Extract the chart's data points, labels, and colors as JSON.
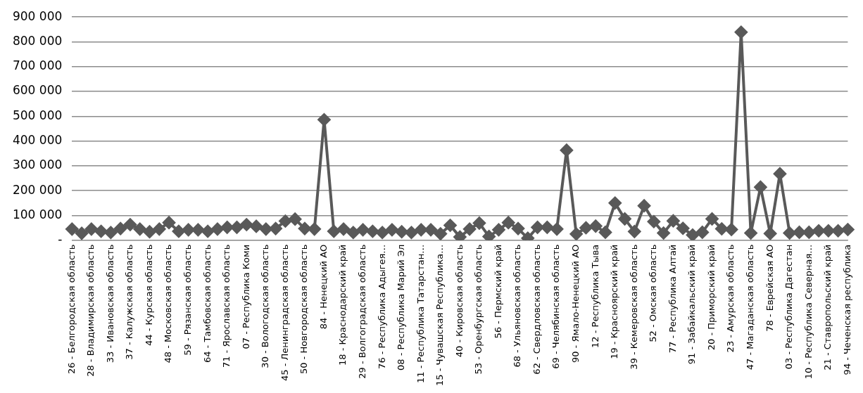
{
  "chart_data": {
    "type": "line",
    "categories": [
      "26 - Белгородская область",
      null,
      "28 - Владимирская область",
      null,
      "33 - Ивановская область",
      null,
      "37 - Калужская область",
      null,
      "44 - Курская область",
      null,
      "48 - Московская область",
      null,
      "59 - Рязанская область",
      null,
      "64 - Тамбовская область",
      null,
      "71 - Ярославская область",
      null,
      "07 - Республика Коми",
      null,
      "30 - Вологодская область",
      null,
      "45 - Ленинградская область",
      null,
      "50 - Новгородская область",
      null,
      "84 - Ненецкий АО",
      null,
      "18 - Краснодарский край",
      null,
      "29 - Волгоградская область",
      null,
      "76 - Республика Адыгея…",
      null,
      "08 - Республика Марий Эл",
      null,
      "11 - Республика Татарстан…",
      null,
      "15 - Чувашская Республика…",
      null,
      "40 - Кировская область",
      null,
      "53 - Оренбургская область",
      null,
      "56 - Пермский край",
      null,
      "68 - Ульяновская область",
      null,
      "62 - Свердловская область",
      null,
      "69 - Челябинская область",
      null,
      "90 - Ямало-Ненецкий АО",
      null,
      "12 - Республика Тыва",
      null,
      "19 - Красноярский край",
      null,
      "39 - Кемеровская область",
      null,
      "52 - Омская область",
      null,
      "77 - Республика Алтай",
      null,
      "91 - Забайкальский край",
      null,
      "20 - Приморский край",
      null,
      "23 - Амурская область",
      null,
      "47 - Магаданская область",
      null,
      "78 - Еврейская АО",
      null,
      "03 - Республика Дагестан",
      null,
      "10 - Республика Северная…",
      null,
      "21 - Ставропольский край",
      null,
      "94 - Чеченская республика"
    ],
    "series": [
      {
        "color": "#595959",
        "values": [
          45000,
          28000,
          45000,
          36000,
          31000,
          47000,
          63000,
          45000,
          34000,
          45000,
          71000,
          36000,
          42000,
          42000,
          36000,
          45000,
          52000,
          52000,
          63000,
          56000,
          45000,
          47000,
          77000,
          85000,
          47000,
          45000,
          486000,
          36000,
          45000,
          31000,
          42000,
          36000,
          31000,
          42000,
          34000,
          31000,
          42000,
          42000,
          26000,
          60000,
          13000,
          45000,
          69000,
          15000,
          42000,
          71000,
          47000,
          8000,
          52000,
          52000,
          45000,
          363000,
          25000,
          50000,
          57000,
          32000,
          150000,
          86000,
          35000,
          139000,
          75000,
          29000,
          78000,
          48000,
          21000,
          32000,
          86000,
          46000,
          43000,
          839000,
          29000,
          214000,
          27000,
          268000,
          29000,
          32000,
          32000,
          38000,
          38000,
          38000,
          43000
        ]
      }
    ],
    "ylim": [
      0,
      900000
    ],
    "yticks": [
      {
        "value": 0,
        "label": "-"
      },
      {
        "value": 100000,
        "label": "100 000"
      },
      {
        "value": 200000,
        "label": "200 000"
      },
      {
        "value": 300000,
        "label": "300 000"
      },
      {
        "value": 400000,
        "label": "400 000"
      },
      {
        "value": 500000,
        "label": "500 000"
      },
      {
        "value": 600000,
        "label": "600 000"
      },
      {
        "value": 700000,
        "label": "700 000"
      },
      {
        "value": 800000,
        "label": "800 000"
      },
      {
        "value": 900000,
        "label": "900 000"
      }
    ],
    "grid": "y",
    "legend": false,
    "marker": "diamond",
    "line_style": "solid"
  }
}
